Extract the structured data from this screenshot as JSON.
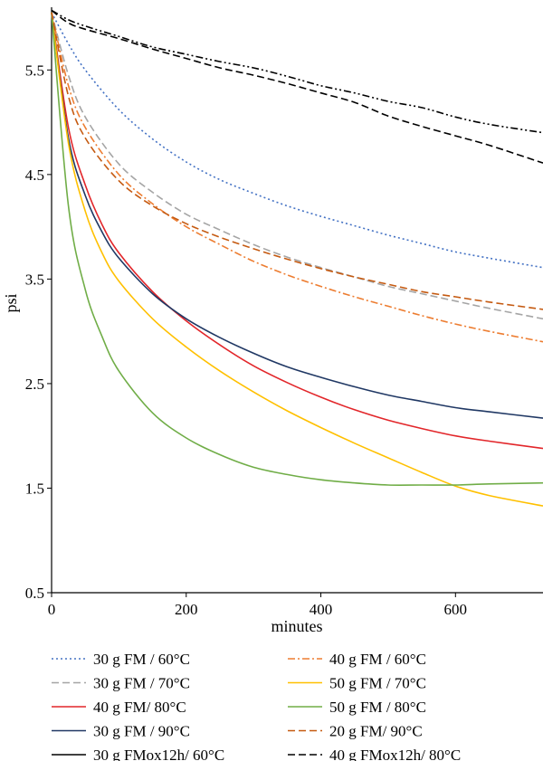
{
  "chart_data": {
    "type": "line",
    "title": "",
    "xlabel": "minutes",
    "ylabel": "psi",
    "xlim": [
      0,
      730
    ],
    "ylim": [
      0.5,
      6.1
    ],
    "x_ticks": [
      0,
      200,
      400,
      600
    ],
    "x_tick_labels": [
      "0",
      "200",
      "400",
      "600"
    ],
    "y_ticks": [
      0.5,
      1.5,
      2.5,
      3.5,
      4.5,
      5.5
    ],
    "y_tick_labels": [
      "0.5",
      "1.5",
      "2.5",
      "3.5",
      "4.5",
      "5.5"
    ],
    "grid": false,
    "legend_position": "bottom",
    "series": [
      {
        "name": "30 g FM / 60°C",
        "color": "#4472C4",
        "dash": "dotted",
        "x": [
          0,
          25,
          50,
          100,
          150,
          200,
          250,
          300,
          350,
          400,
          450,
          500,
          550,
          600,
          650,
          730
        ],
        "y": [
          6.05,
          5.75,
          5.5,
          5.12,
          4.84,
          4.62,
          4.45,
          4.32,
          4.2,
          4.1,
          4.01,
          3.92,
          3.84,
          3.76,
          3.7,
          3.61
        ]
      },
      {
        "name": "30 g FM / 70°C",
        "color": "#A5A5A5",
        "dash": "dashed",
        "x": [
          0,
          25,
          50,
          100,
          150,
          200,
          250,
          300,
          350,
          400,
          450,
          500,
          550,
          600,
          650,
          730
        ],
        "y": [
          6.05,
          5.45,
          5.05,
          4.6,
          4.33,
          4.12,
          3.97,
          3.83,
          3.71,
          3.61,
          3.52,
          3.43,
          3.36,
          3.29,
          3.22,
          3.12
        ]
      },
      {
        "name": "40 g FM/ 80°C",
        "color": "#E2262A",
        "dash": "solid",
        "x": [
          0,
          25,
          50,
          75,
          100,
          150,
          200,
          250,
          300,
          350,
          400,
          450,
          500,
          550,
          600,
          650,
          730
        ],
        "y": [
          6.05,
          4.95,
          4.4,
          4.02,
          3.75,
          3.38,
          3.1,
          2.87,
          2.67,
          2.51,
          2.37,
          2.25,
          2.15,
          2.07,
          2.0,
          1.95,
          1.88
        ]
      },
      {
        "name": "30 g FM / 90°C",
        "color": "#203864",
        "dash": "solid",
        "x": [
          0,
          25,
          50,
          75,
          100,
          150,
          200,
          250,
          300,
          350,
          400,
          450,
          500,
          550,
          600,
          650,
          730
        ],
        "y": [
          6.05,
          4.85,
          4.3,
          3.95,
          3.7,
          3.36,
          3.12,
          2.94,
          2.79,
          2.66,
          2.56,
          2.47,
          2.39,
          2.33,
          2.27,
          2.23,
          2.17
        ]
      },
      {
        "name": "30 g FMox12h/ 60°C",
        "color": "#000000",
        "dash": "solid",
        "x": [],
        "y": []
      },
      {
        "name": "40 g FM / 60°C",
        "color": "#ED7D31",
        "dash": "dashdot",
        "x": [
          0,
          25,
          50,
          100,
          150,
          200,
          250,
          300,
          350,
          400,
          450,
          500,
          550,
          600,
          650,
          730
        ],
        "y": [
          6.05,
          5.35,
          4.95,
          4.5,
          4.22,
          4.0,
          3.83,
          3.67,
          3.54,
          3.43,
          3.33,
          3.24,
          3.15,
          3.07,
          3.0,
          2.9
        ]
      },
      {
        "name": "50 g FM / 70°C",
        "color": "#FFC000",
        "dash": "solid",
        "x": [
          0,
          25,
          50,
          75,
          100,
          150,
          200,
          250,
          300,
          350,
          400,
          450,
          500,
          550,
          600,
          650,
          730
        ],
        "y": [
          6.05,
          4.8,
          4.15,
          3.75,
          3.48,
          3.12,
          2.85,
          2.62,
          2.42,
          2.24,
          2.08,
          1.93,
          1.79,
          1.65,
          1.52,
          1.43,
          1.33
        ]
      },
      {
        "name": "50 g FM / 80°C",
        "color": "#70AD47",
        "dash": "solid",
        "x": [
          0,
          25,
          50,
          75,
          100,
          150,
          200,
          250,
          300,
          350,
          400,
          450,
          500,
          550,
          600,
          650,
          730
        ],
        "y": [
          6.05,
          4.2,
          3.4,
          2.95,
          2.62,
          2.22,
          1.98,
          1.82,
          1.7,
          1.63,
          1.58,
          1.55,
          1.53,
          1.53,
          1.53,
          1.54,
          1.55
        ]
      },
      {
        "name": "20 g FM/ 90°C",
        "color": "#C55A11",
        "dash": "dashed",
        "x": [
          0,
          25,
          50,
          100,
          150,
          200,
          250,
          300,
          350,
          400,
          450,
          500,
          550,
          600,
          650,
          730
        ],
        "y": [
          6.05,
          5.25,
          4.85,
          4.44,
          4.2,
          4.03,
          3.9,
          3.79,
          3.69,
          3.6,
          3.52,
          3.45,
          3.38,
          3.33,
          3.28,
          3.21
        ]
      },
      {
        "name": "40 g FMox12h/ 80°C",
        "color": "#000000",
        "dash": "dashed",
        "x": [
          0,
          25,
          50,
          100,
          150,
          200,
          250,
          300,
          350,
          400,
          450,
          500,
          550,
          600,
          650,
          730
        ],
        "y": [
          6.07,
          5.95,
          5.89,
          5.8,
          5.7,
          5.61,
          5.52,
          5.45,
          5.37,
          5.28,
          5.19,
          5.06,
          4.96,
          4.87,
          4.78,
          4.61
        ]
      },
      {
        "name": "",
        "color": "#000000",
        "dash": "dashdotdot",
        "x": [
          0,
          25,
          50,
          100,
          150,
          200,
          250,
          300,
          350,
          400,
          450,
          500,
          550,
          600,
          650,
          730
        ],
        "y": [
          6.07,
          5.98,
          5.92,
          5.82,
          5.72,
          5.65,
          5.58,
          5.52,
          5.44,
          5.35,
          5.28,
          5.2,
          5.14,
          5.05,
          4.98,
          4.9
        ]
      }
    ]
  }
}
